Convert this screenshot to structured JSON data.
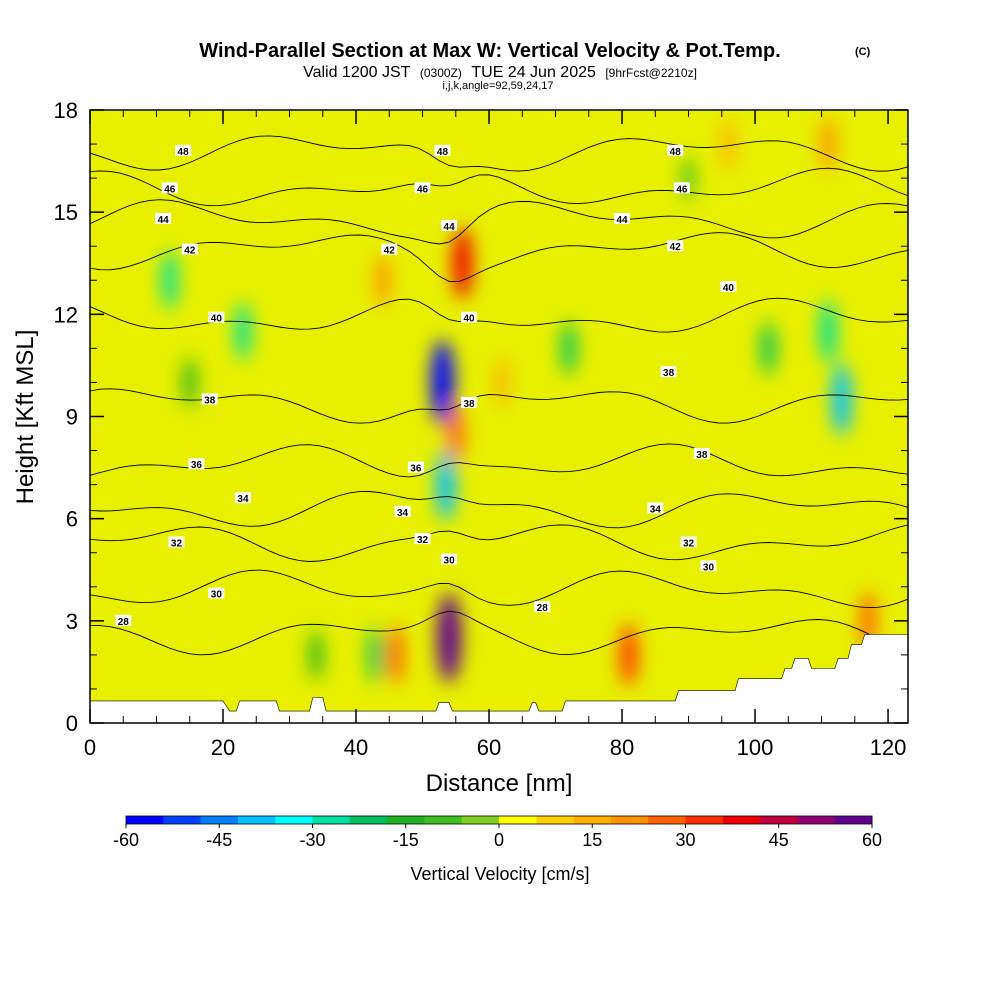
{
  "chart_data": {
    "type": "heatmap",
    "title": "Wind-Parallel Section at Max W: Vertical Velocity & Pot.Temp.",
    "title_mark": "(C)",
    "subtitle_parts": [
      "Valid 1200 JST",
      "(0300Z)",
      "TUE 24 Jun 2025",
      "[9hrFcst@2210z]"
    ],
    "grid_info": "i,j,k,angle=92,59,24,17",
    "xlabel": "Distance [nm]",
    "ylabel": "Height [Kft MSL]",
    "xlim": [
      0,
      123
    ],
    "ylim": [
      0,
      18
    ],
    "x_ticks": [
      "0",
      "20",
      "40",
      "60",
      "80",
      "100",
      "120"
    ],
    "y_ticks": [
      "0",
      "3",
      "6",
      "9",
      "12",
      "15",
      "18"
    ],
    "colorbar": {
      "label": "Vertical Velocity [cm/s]",
      "range": [
        -60,
        60
      ],
      "ticks": [
        "-60",
        "-45",
        "-30",
        "-15",
        "0",
        "15",
        "30",
        "45",
        "60"
      ],
      "colors": [
        "#0000ff",
        "#0040ff",
        "#0080ff",
        "#00c0ff",
        "#00ffff",
        "#00e0a0",
        "#00c060",
        "#20b020",
        "#40c020",
        "#80d020",
        "#ffff00",
        "#ffd000",
        "#ffb000",
        "#ff9000",
        "#ff6000",
        "#ff3000",
        "#ee0000",
        "#c00040",
        "#900070",
        "#600090"
      ]
    },
    "contour_field": "Potential temperature",
    "contour_levels": [
      28,
      30,
      32,
      34,
      36,
      38,
      40,
      42,
      44,
      46,
      48
    ],
    "contour_labels": [
      {
        "text": "48",
        "x": 14,
        "y": 16.8
      },
      {
        "text": "48",
        "x": 53,
        "y": 16.8
      },
      {
        "text": "48",
        "x": 88,
        "y": 16.8
      },
      {
        "text": "46",
        "x": 12,
        "y": 15.7
      },
      {
        "text": "46",
        "x": 50,
        "y": 15.7
      },
      {
        "text": "46",
        "x": 89,
        "y": 15.7
      },
      {
        "text": "44",
        "x": 11,
        "y": 14.8
      },
      {
        "text": "44",
        "x": 54,
        "y": 14.6
      },
      {
        "text": "44",
        "x": 80,
        "y": 14.8
      },
      {
        "text": "42",
        "x": 15,
        "y": 13.9
      },
      {
        "text": "42",
        "x": 45,
        "y": 13.9
      },
      {
        "text": "42",
        "x": 88,
        "y": 14.0
      },
      {
        "text": "40",
        "x": 96,
        "y": 12.8
      },
      {
        "text": "40",
        "x": 19,
        "y": 11.9
      },
      {
        "text": "40",
        "x": 57,
        "y": 11.9
      },
      {
        "text": "38",
        "x": 87,
        "y": 10.3
      },
      {
        "text": "38",
        "x": 18,
        "y": 9.5
      },
      {
        "text": "38",
        "x": 57,
        "y": 9.4
      },
      {
        "text": "38",
        "x": 92,
        "y": 7.9
      },
      {
        "text": "36",
        "x": 16,
        "y": 7.6
      },
      {
        "text": "36",
        "x": 49,
        "y": 7.5
      },
      {
        "text": "34",
        "x": 23,
        "y": 6.6
      },
      {
        "text": "34",
        "x": 47,
        "y": 6.2
      },
      {
        "text": "34",
        "x": 85,
        "y": 6.3
      },
      {
        "text": "32",
        "x": 13,
        "y": 5.3
      },
      {
        "text": "32",
        "x": 50,
        "y": 5.4
      },
      {
        "text": "32",
        "x": 90,
        "y": 5.3
      },
      {
        "text": "30",
        "x": 54,
        "y": 4.8
      },
      {
        "text": "30",
        "x": 93,
        "y": 4.6
      },
      {
        "text": "30",
        "x": 19,
        "y": 3.8
      },
      {
        "text": "28",
        "x": 68,
        "y": 3.4
      },
      {
        "text": "28",
        "x": 5,
        "y": 3.0
      }
    ],
    "updrafts": [
      {
        "x": 54,
        "y": 2.5,
        "value": 60
      },
      {
        "x": 56,
        "y": 13.5,
        "value": 40
      },
      {
        "x": 55,
        "y": 8.5,
        "value": 25
      },
      {
        "x": 44,
        "y": 13.0,
        "value": 18
      },
      {
        "x": 62,
        "y": 10.0,
        "value": 15
      },
      {
        "x": 81,
        "y": 2.0,
        "value": 30
      },
      {
        "x": 46,
        "y": 2.0,
        "value": 25
      },
      {
        "x": 96,
        "y": 17.0,
        "value": 15
      },
      {
        "x": 111,
        "y": 17.0,
        "value": 20
      },
      {
        "x": 117,
        "y": 3.0,
        "value": 25
      }
    ],
    "downdrafts": [
      {
        "x": 53,
        "y": 10.0,
        "value": -55
      },
      {
        "x": 53.5,
        "y": 7.0,
        "value": -40
      },
      {
        "x": 113,
        "y": 9.5,
        "value": -40
      },
      {
        "x": 111,
        "y": 11.5,
        "value": -30
      },
      {
        "x": 12,
        "y": 13.0,
        "value": -25
      },
      {
        "x": 23,
        "y": 11.5,
        "value": -25
      },
      {
        "x": 43,
        "y": 2.0,
        "value": -22
      },
      {
        "x": 72,
        "y": 11.0,
        "value": -20
      },
      {
        "x": 102,
        "y": 11.0,
        "value": -20
      },
      {
        "x": 15,
        "y": 10.0,
        "value": -15
      },
      {
        "x": 34,
        "y": 2.0,
        "value": -15
      },
      {
        "x": 90,
        "y": 16.0,
        "value": -10
      }
    ],
    "terrain_kft": [
      [
        0,
        0.65
      ],
      [
        10,
        0.65
      ],
      [
        20,
        0.65
      ],
      [
        21,
        0.35
      ],
      [
        22,
        0.35
      ],
      [
        22.5,
        0.65
      ],
      [
        28,
        0.65
      ],
      [
        28.5,
        0.35
      ],
      [
        33,
        0.35
      ],
      [
        33.5,
        0.75
      ],
      [
        35,
        0.75
      ],
      [
        35.5,
        0.35
      ],
      [
        52,
        0.35
      ],
      [
        52.5,
        0.6
      ],
      [
        54,
        0.6
      ],
      [
        54.5,
        0.35
      ],
      [
        66,
        0.35
      ],
      [
        66.5,
        0.6
      ],
      [
        67,
        0.6
      ],
      [
        67.5,
        0.35
      ],
      [
        71,
        0.35
      ],
      [
        71.5,
        0.65
      ],
      [
        88,
        0.65
      ],
      [
        88.5,
        0.95
      ],
      [
        97,
        0.95
      ],
      [
        97.5,
        1.3
      ],
      [
        104,
        1.3
      ],
      [
        104.5,
        1.6
      ],
      [
        105.5,
        1.6
      ],
      [
        106,
        1.9
      ],
      [
        108,
        1.9
      ],
      [
        108.5,
        1.6
      ],
      [
        112,
        1.6
      ],
      [
        112.5,
        1.9
      ],
      [
        114,
        1.9
      ],
      [
        114.5,
        2.3
      ],
      [
        116,
        2.3
      ],
      [
        116.5,
        2.6
      ],
      [
        123,
        2.6
      ]
    ]
  }
}
